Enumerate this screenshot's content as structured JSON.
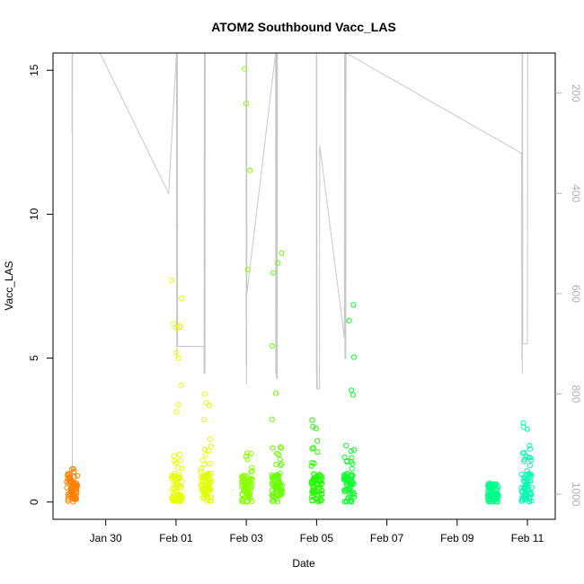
{
  "chart_data": {
    "type": "scatter",
    "title": "ATOM2 Southbound Vacc_LAS",
    "xlabel": "Date",
    "ylabel": "Vacc_LAS",
    "x_ticks": [
      {
        "label": "Jan 30",
        "date": "2014-01-30"
      },
      {
        "label": "Feb 01",
        "date": "2014-02-01"
      },
      {
        "label": "Feb 03",
        "date": "2014-02-03"
      },
      {
        "label": "Feb 05",
        "date": "2014-02-05"
      },
      {
        "label": "Feb 07",
        "date": "2014-02-07"
      },
      {
        "label": "Feb 09",
        "date": "2014-02-09"
      },
      {
        "label": "Feb 11",
        "date": "2014-02-11"
      }
    ],
    "xlim": [
      "2014-01-28T12:00",
      "2014-02-11T19:00"
    ],
    "ylim": [
      -0.6,
      15.6
    ],
    "y_ticks": [
      0,
      5,
      10,
      15
    ],
    "secondary_axis": {
      "ticks": [
        200,
        400,
        600,
        800,
        1000
      ],
      "range": [
        1050,
        120
      ],
      "color": "#b0b0b0"
    },
    "grid": false,
    "clusters": [
      {
        "t": "2014-01-29T01:00",
        "max": 1.15,
        "color": "#ff8000"
      },
      {
        "t": "2014-02-01T00:30",
        "max": 7.7,
        "color": "#e6ff00"
      },
      {
        "t": "2014-02-01T20:30",
        "max": 3.75,
        "color": "#e0ff00"
      },
      {
        "t": "2014-02-03T00:30",
        "max": 15.05,
        "color": "#88ff00"
      },
      {
        "t": "2014-02-03T21:00",
        "max": 8.65,
        "color": "#66ff00"
      },
      {
        "t": "2014-02-05T00:10",
        "max": 2.85,
        "color": "#22ff00"
      },
      {
        "t": "2014-02-05T22:00",
        "max": 6.85,
        "color": "#10ff30"
      },
      {
        "t": "2014-02-10T00:30",
        "max": 0.65,
        "color": "#00ff88"
      },
      {
        "t": "2014-02-10T23:30",
        "max": 2.75,
        "color": "#00ffb0"
      }
    ],
    "depth_profile": [
      [
        "2014-01-29T01:00",
        120
      ],
      [
        "2014-01-29T01:00",
        280
      ],
      [
        "2014-01-29T01:10",
        120
      ],
      [
        "2014-01-29T01:10",
        1000
      ],
      [
        "2014-01-29T01:20",
        120
      ],
      [
        "2014-01-29T20:00",
        120
      ],
      [
        "2014-01-31T19:00",
        400
      ],
      [
        "2014-02-01T00:20",
        120
      ],
      [
        "2014-02-01T00:25",
        700
      ],
      [
        "2014-02-01T00:30",
        120
      ],
      [
        "2014-02-01T00:35",
        730
      ],
      [
        "2014-02-01T00:40",
        120
      ],
      [
        "2014-02-01T00:45",
        705
      ],
      [
        "2014-02-01T00:50",
        120
      ],
      [
        "2014-02-01T00:55",
        560
      ],
      [
        "2014-02-01T01:00",
        120
      ],
      [
        "2014-02-01T01:05",
        705
      ],
      [
        "2014-02-01T01:15",
        705
      ],
      [
        "2014-02-01T19:00",
        705
      ],
      [
        "2014-02-01T19:10",
        760
      ],
      [
        "2014-02-01T19:20",
        120
      ],
      [
        "2014-02-01T19:30",
        730
      ],
      [
        "2014-02-01T19:40",
        120
      ],
      [
        "2014-02-01T19:50",
        760
      ],
      [
        "2014-02-01T20:00",
        120
      ],
      [
        "2014-02-02T23:50",
        120
      ],
      [
        "2014-02-02T23:55",
        740
      ],
      [
        "2014-02-03T00:00",
        120
      ],
      [
        "2014-02-03T00:05",
        780
      ],
      [
        "2014-02-03T00:10",
        120
      ],
      [
        "2014-02-03T00:15",
        780
      ],
      [
        "2014-02-03T00:20",
        110
      ],
      [
        "2014-02-03T00:25",
        600
      ],
      [
        "2014-02-03T20:00",
        120
      ],
      [
        "2014-02-03T20:05",
        760
      ],
      [
        "2014-02-03T20:10",
        120
      ],
      [
        "2014-02-03T20:15",
        750
      ],
      [
        "2014-02-03T20:20",
        120
      ],
      [
        "2014-02-03T20:25",
        700
      ],
      [
        "2014-02-03T20:30",
        120
      ],
      [
        "2014-02-03T20:35",
        770
      ],
      [
        "2014-02-03T20:40",
        120
      ],
      [
        "2014-02-03T20:50",
        120
      ],
      [
        "2014-02-03T20:55",
        760
      ],
      [
        "2014-02-03T21:00",
        120
      ],
      [
        "2014-02-03T21:05",
        700
      ],
      [
        "2014-02-03T21:10",
        770
      ],
      [
        "2014-02-03T21:15",
        120
      ],
      [
        "2014-02-04T23:50",
        120
      ],
      [
        "2014-02-04T23:55",
        760
      ],
      [
        "2014-02-05T00:00",
        120
      ],
      [
        "2014-02-05T00:05",
        790
      ],
      [
        "2014-02-05T00:10",
        120
      ],
      [
        "2014-02-05T00:20",
        690
      ],
      [
        "2014-02-05T00:30",
        790
      ],
      [
        "2014-02-05T02:00",
        790
      ],
      [
        "2014-02-05T02:10",
        305
      ],
      [
        "2014-02-05T19:00",
        688
      ],
      [
        "2014-02-05T19:10",
        120
      ],
      [
        "2014-02-05T19:20",
        730
      ],
      [
        "2014-02-05T19:30",
        120
      ],
      [
        "2014-02-05T19:40",
        700
      ],
      [
        "2014-02-05T19:50",
        120
      ],
      [
        "2014-02-05T20:00",
        730
      ],
      [
        "2014-02-05T20:10",
        120
      ],
      [
        "2014-02-10T20:00",
        320
      ],
      [
        "2014-02-10T20:10",
        730
      ],
      [
        "2014-02-10T20:20",
        120
      ],
      [
        "2014-02-10T20:30",
        760
      ],
      [
        "2014-02-10T20:40",
        120
      ],
      [
        "2014-02-10T20:50",
        700
      ],
      [
        "2014-02-11T00:00",
        700
      ],
      [
        "2014-02-11T00:10",
        120
      ]
    ]
  }
}
